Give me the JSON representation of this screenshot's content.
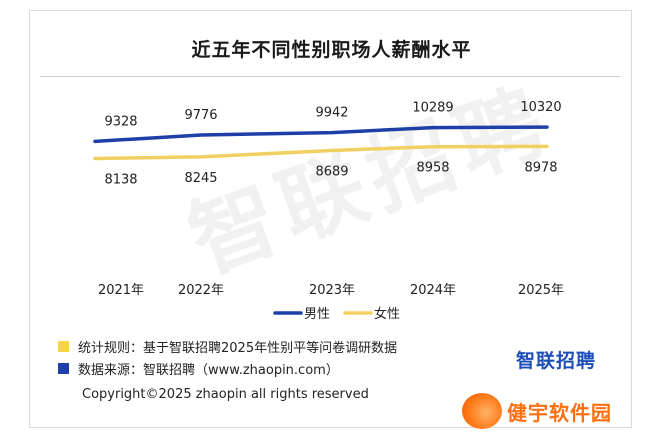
{
  "chart_data": {
    "type": "line",
    "title": "近五年不同性别职场人薪酬水平",
    "categories": [
      "2021年",
      "2022年",
      "2023年",
      "2024年",
      "2025年"
    ],
    "series": [
      {
        "name": "男性",
        "color": "#1f3fa8",
        "values": [
          9328,
          9776,
          9942,
          10289,
          10320
        ]
      },
      {
        "name": "女性",
        "color": "#f0d060",
        "values": [
          8138,
          8245,
          8689,
          8958,
          8978
        ]
      }
    ],
    "grid": false,
    "legend": "bottom-center"
  },
  "notes": [
    {
      "label": "统计规则：基于智联招聘2025年性别平等问卷调研数据",
      "color": "#f5d34a"
    },
    {
      "label": "数据来源：智联招聘（www.zhaopin.com）",
      "color": "#1f3fa8"
    }
  ],
  "copyright": "Copyright©2025 zhaopin all rights reserved",
  "brand_logo": "智联招聘",
  "watermark": "智联招聘",
  "site_badge": {
    "text": "健宇软件园",
    "icon": "flame-icon",
    "color": "#ff6f10"
  }
}
